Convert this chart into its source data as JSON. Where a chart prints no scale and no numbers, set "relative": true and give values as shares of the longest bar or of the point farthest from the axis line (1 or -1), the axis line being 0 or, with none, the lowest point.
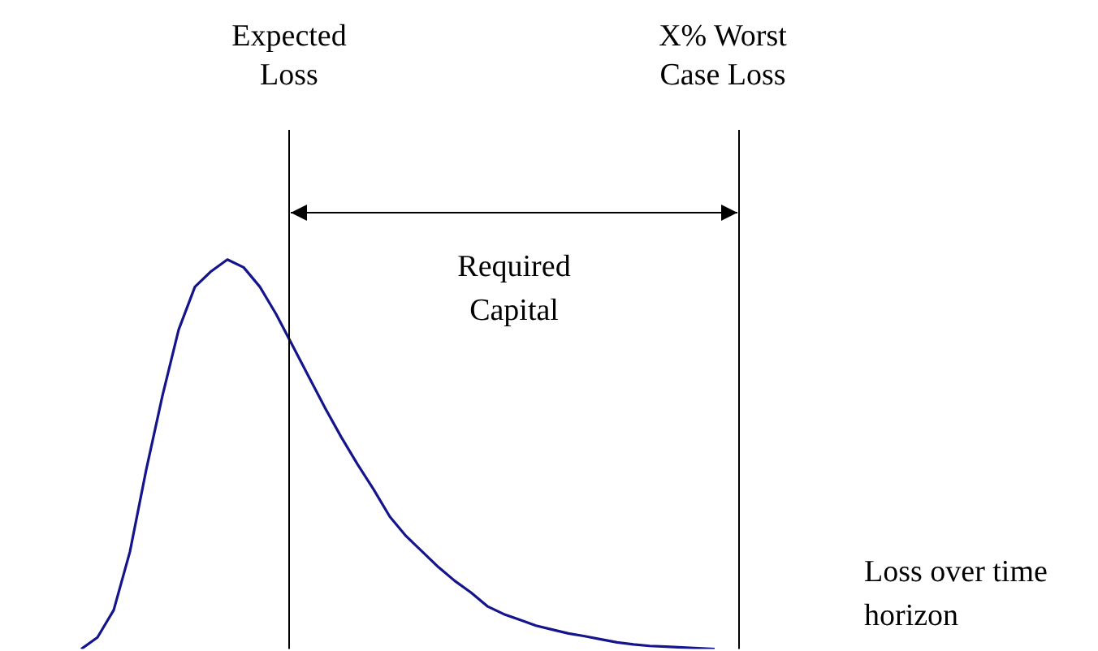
{
  "chart_data": {
    "type": "line",
    "relative": true,
    "xlabel": "Loss over time horizon",
    "grid": false,
    "legend": false,
    "marker": "none",
    "line_style": "solid",
    "categories": [
      null,
      null,
      null,
      null,
      null,
      null,
      null,
      null,
      null,
      null,
      null,
      null,
      null,
      null,
      null,
      null,
      null,
      null,
      null,
      null,
      null,
      null,
      null,
      null,
      null,
      null,
      null,
      null,
      null,
      null,
      null,
      null,
      null,
      null,
      null,
      null,
      null,
      null,
      null,
      null,
      null,
      null
    ],
    "series": [
      {
        "color": "#14148c",
        "values": [
          0,
          0.03,
          0.1,
          0.25,
          0.46,
          0.65,
          0.82,
          0.93,
          0.97,
          1,
          0.98,
          0.93,
          0.86,
          0.78,
          0.7,
          0.62,
          0.545,
          0.475,
          0.41,
          0.34,
          0.29,
          0.25,
          0.21,
          0.175,
          0.145,
          0.11,
          0.09,
          0.075,
          0.06,
          0.05,
          0.04,
          0.033,
          0.025,
          0.017,
          0.012,
          0.008,
          0.006,
          0.004,
          0.002,
          0,
          null,
          null
        ]
      }
    ],
    "annotations": [
      "Expected Loss",
      "X% Worst Case Loss",
      "Required Capital"
    ]
  }
}
